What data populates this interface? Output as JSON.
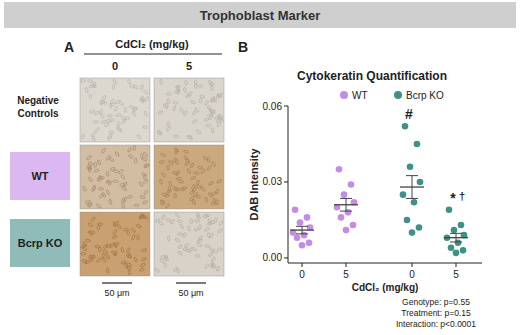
{
  "figure": {
    "header": "Trophoblast Marker",
    "panel_a": {
      "label": "A",
      "treatment_label": "CdCl₂ (mg/kg)",
      "columns": [
        "0",
        "5"
      ],
      "rows": [
        "Negative Controls",
        "WT",
        "Bcrp KO"
      ],
      "scale_bar": "50 μm"
    }
  },
  "chart_data": {
    "type": "dot_plot",
    "panel_label": "B",
    "title": "Cytokeratin Quantification",
    "y_label": "DAB Intensity",
    "x_label": "CdCl₂ (mg/kg)",
    "categories": [
      "0",
      "5",
      "0",
      "5"
    ],
    "ylim": [
      -0.002,
      0.06
    ],
    "yticks": [
      {
        "value": 0,
        "label": "0.00"
      },
      {
        "value": 0.03,
        "label": "0.03"
      },
      {
        "value": 0.06,
        "label": "0.06"
      }
    ],
    "legend": "top",
    "series": [
      {
        "name": "WT",
        "color": "#c58be6",
        "values": [
          [
            0.019,
            0.016,
            0.014,
            0.012,
            0.01,
            0.009,
            0.008,
            0.006,
            0.005
          ],
          [
            0.035,
            0.029,
            0.025,
            0.022,
            0.02,
            0.018,
            0.016,
            0.013,
            0.011
          ],
          null,
          null
        ],
        "means": [
          0.011,
          0.021,
          null,
          null
        ],
        "errors": [
          0.0015,
          0.0025,
          null,
          null
        ]
      },
      {
        "name": "Bcrp KO",
        "color": "#3f9188",
        "values": [
          null,
          null,
          [
            0.052,
            0.045,
            0.036,
            0.03,
            0.025,
            0.022,
            0.015,
            0.012,
            0.01
          ],
          [
            0.019,
            0.013,
            0.011,
            0.009,
            0.008,
            0.006,
            0.004,
            0.003,
            0.002
          ]
        ],
        "means": [
          null,
          null,
          0.028,
          0.008
        ],
        "errors": [
          null,
          null,
          0.0045,
          0.0017
        ]
      }
    ],
    "annotations": [
      {
        "text": "#",
        "category": 2
      },
      {
        "text": "*",
        "category": 3
      },
      {
        "text": "†",
        "category": 3
      }
    ],
    "stats": [
      "Genotype: p=0.55",
      "Treatment: p=0.15",
      "Interaction: p<0.0001"
    ]
  }
}
